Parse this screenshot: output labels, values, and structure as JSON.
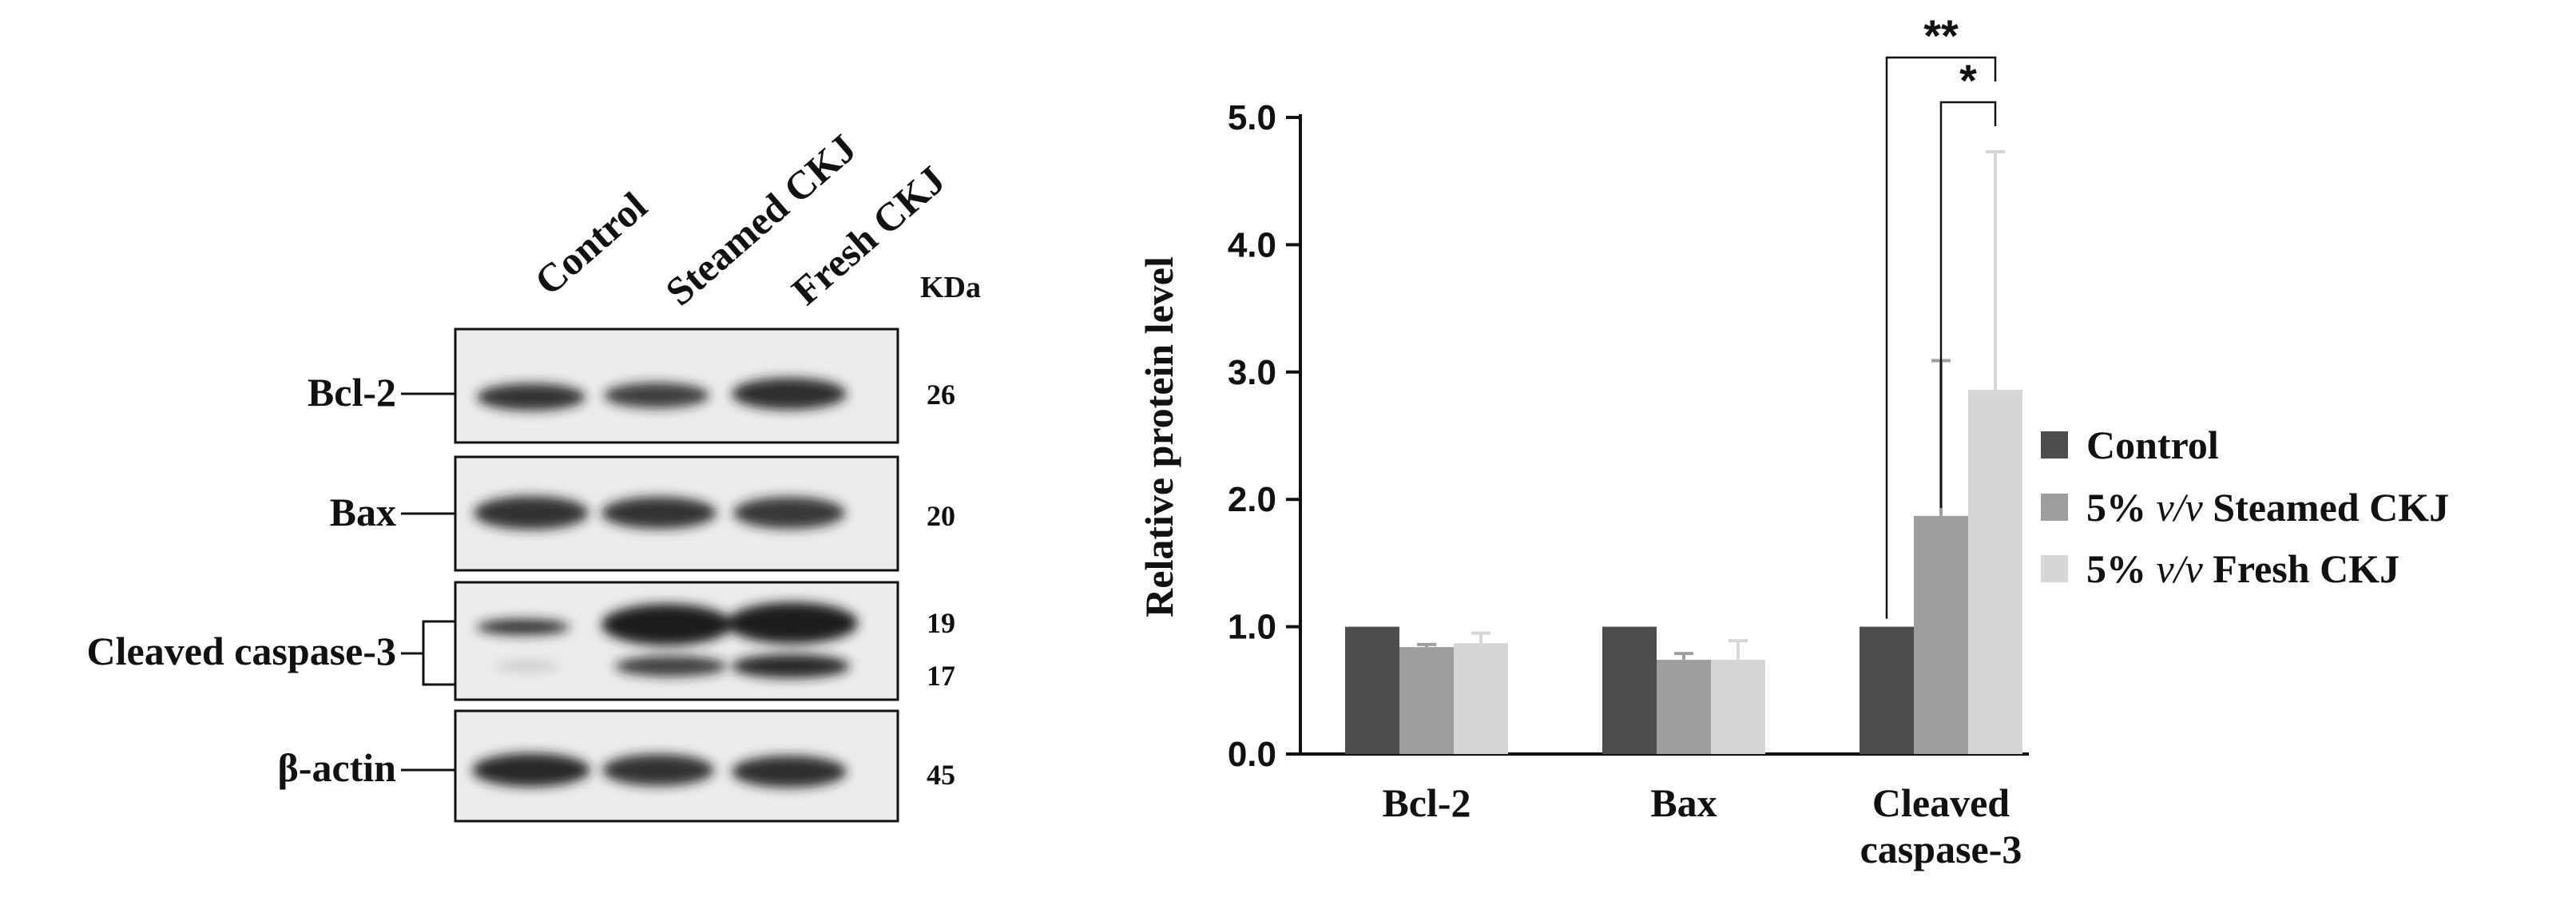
{
  "blot": {
    "lanes": [
      "Control",
      "Steamed CKJ",
      "Fresh CKJ"
    ],
    "kda_label": "KDa",
    "proteins": [
      {
        "name": "Bcl-2",
        "kda": [
          "26"
        ]
      },
      {
        "name": "Bax",
        "kda": [
          "20"
        ]
      },
      {
        "name": "Cleaved caspase-3",
        "kda": [
          "19",
          "17"
        ]
      },
      {
        "name": "β-actin",
        "kda": [
          "45"
        ]
      }
    ]
  },
  "chart_data": {
    "type": "bar",
    "categories": [
      "Bcl-2",
      "Bax",
      "Cleaved\ncaspase-3"
    ],
    "ylabel": "Relative protein level",
    "ylim": [
      0,
      5
    ],
    "yticks": [
      "0.0",
      "1.0",
      "2.0",
      "3.0",
      "4.0",
      "5.0"
    ],
    "grid": false,
    "legend_position": "right",
    "series": [
      {
        "name": "Control",
        "values": [
          1.0,
          1.0,
          1.0
        ],
        "errors": [
          0,
          0,
          0
        ],
        "color": "#4d4d4d"
      },
      {
        "name": "5% v/v Steamed CKJ",
        "values": [
          0.84,
          0.74,
          1.87
        ],
        "errors": [
          0.02,
          0.05,
          1.22
        ],
        "color": "#9e9e9e"
      },
      {
        "name": "5% v/v Fresh CKJ",
        "values": [
          0.87,
          0.74,
          2.86
        ],
        "errors": [
          0.08,
          0.15,
          1.87
        ],
        "color": "#d6d6d6"
      }
    ],
    "significance": [
      {
        "label": "**",
        "category": 2,
        "from_series": 0,
        "to_series": 2
      },
      {
        "label": "*",
        "category": 2,
        "from_series": 1,
        "to_series": 2
      }
    ]
  }
}
